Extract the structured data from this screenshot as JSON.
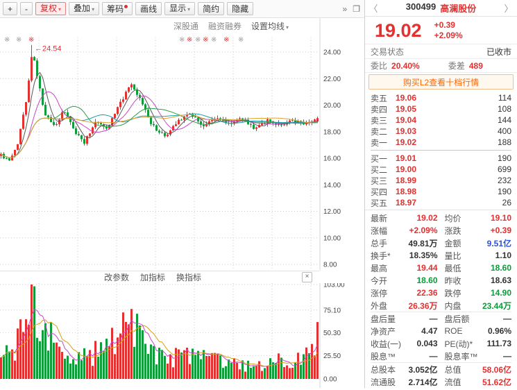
{
  "toolbar": {
    "buttons": [
      {
        "id": "zoom-in",
        "label": "+"
      },
      {
        "id": "zoom-out",
        "label": "-"
      },
      {
        "id": "adjust-price",
        "label": "复权",
        "arrow": true,
        "active": true
      },
      {
        "id": "overlay",
        "label": "叠加",
        "arrow": true
      },
      {
        "id": "chips",
        "label": "筹码",
        "dot": true
      },
      {
        "id": "draw-line",
        "label": "画线"
      },
      {
        "id": "display",
        "label": "显示",
        "arrow": true
      },
      {
        "id": "simple",
        "label": "简约"
      },
      {
        "id": "hide",
        "label": "隐藏"
      }
    ],
    "more": "»",
    "popout": "❐",
    "caret": "▾",
    "overlay_links": [
      "深股通",
      "融资融券"
    ],
    "ma_setting": "设置均线"
  },
  "indicator_bar": {
    "links": [
      "改参数",
      "加指标",
      "换指标"
    ],
    "close": "×"
  },
  "quote_panel": {
    "nav_prev": "〈",
    "nav_next": "〉",
    "code": "300499",
    "name": "高澜股份",
    "price": "19.02",
    "change": "+0.39",
    "change_pct": "+2.09%",
    "trade_status_label": "交易状态",
    "trade_status": "已收市",
    "weibi_label": "委比",
    "weibi": "20.40%",
    "weicha_label": "委差",
    "weicha": "489",
    "l2_link": "购买L2查看十档行情",
    "asks": [
      [
        "卖五",
        "19.06",
        "114"
      ],
      [
        "卖四",
        "19.05",
        "108"
      ],
      [
        "卖三",
        "19.04",
        "144"
      ],
      [
        "卖二",
        "19.03",
        "400"
      ],
      [
        "卖一",
        "19.02",
        "188"
      ]
    ],
    "bids": [
      [
        "买一",
        "19.01",
        "190"
      ],
      [
        "买二",
        "19.00",
        "699"
      ],
      [
        "买三",
        "18.99",
        "232"
      ],
      [
        "买四",
        "18.98",
        "190"
      ],
      [
        "买五",
        "18.97",
        "26"
      ]
    ],
    "stats": [
      [
        [
          "最新",
          "19.02",
          "red"
        ],
        [
          "均价",
          "19.10",
          "red"
        ]
      ],
      [
        [
          "涨幅",
          "+2.09%",
          "red"
        ],
        [
          "涨跌",
          "+0.39",
          "red"
        ]
      ],
      [
        [
          "总手",
          "49.81万",
          "dark"
        ],
        [
          "金额",
          "9.51亿",
          "blue"
        ]
      ],
      [
        [
          "换手*",
          "18.35%",
          "dark"
        ],
        [
          "量比",
          "1.10",
          "dark"
        ]
      ],
      [
        [
          "最高",
          "19.44",
          "red"
        ],
        [
          "最低",
          "18.60",
          "green"
        ]
      ],
      [
        [
          "今开",
          "18.60",
          "green"
        ],
        [
          "昨收",
          "18.63",
          "dark"
        ]
      ],
      [
        [
          "涨停",
          "22.36",
          "red"
        ],
        [
          "跌停",
          "14.90",
          "green"
        ]
      ],
      [
        [
          "外盘",
          "26.36万",
          "red"
        ],
        [
          "内盘",
          "23.44万",
          "green"
        ]
      ],
      [
        [
          "盘后量",
          "—",
          "dark"
        ],
        [
          "盘后额",
          "—",
          "dark"
        ]
      ],
      [
        [
          "净资产",
          "4.47",
          "dark"
        ],
        [
          "ROE",
          "0.96%",
          "dark"
        ]
      ],
      [
        [
          "收益(一)",
          "0.043",
          "dark"
        ],
        [
          "PE(动)*",
          "111.73",
          "dark"
        ]
      ],
      [
        [
          "股息™",
          "—",
          "dark"
        ],
        [
          "股息率™",
          "—",
          "dark"
        ]
      ],
      [
        [
          "总股本",
          "3.052亿",
          "dark"
        ],
        [
          "总值",
          "58.06亿",
          "red"
        ]
      ],
      [
        [
          "流通股",
          "2.714亿",
          "dark"
        ],
        [
          "流值",
          "51.62亿",
          "red"
        ]
      ]
    ]
  },
  "chart_data": {
    "type": "candlestick",
    "glyph_marker": "※",
    "last_close": 19.02,
    "spike_price": 24.54,
    "spike_label": "←24.54",
    "spike_volume": 103,
    "num_candles": 115,
    "seed": 42,
    "price_ticks": [
      [
        "24.00",
        24
      ],
      [
        "22.00",
        22
      ],
      [
        "20.00",
        20
      ],
      [
        "18.00",
        18
      ],
      [
        "16.00",
        16
      ],
      [
        "14.00",
        14
      ],
      [
        "12.00",
        12
      ],
      [
        "10.00",
        10
      ],
      [
        "8.00",
        8
      ]
    ],
    "volume_ticks": [
      [
        "103.00",
        103
      ],
      [
        "75.10",
        75.1
      ],
      [
        "50.30",
        50.3
      ],
      [
        "25.50",
        25.5
      ],
      [
        "0.00",
        0
      ]
    ],
    "price_anchors": [
      [
        0,
        16.3
      ],
      [
        0.025,
        15.7
      ],
      [
        0.05,
        16.8
      ],
      [
        0.08,
        20.5
      ],
      [
        0.1,
        24.2
      ],
      [
        0.115,
        22.0
      ],
      [
        0.14,
        19.2
      ],
      [
        0.17,
        18.4
      ],
      [
        0.2,
        19.6
      ],
      [
        0.23,
        18.1
      ],
      [
        0.265,
        17.2
      ],
      [
        0.3,
        18.9
      ],
      [
        0.335,
        18.2
      ],
      [
        0.37,
        19.9
      ],
      [
        0.41,
        21.5
      ],
      [
        0.44,
        20.4
      ],
      [
        0.48,
        18.4
      ],
      [
        0.52,
        17.6
      ],
      [
        0.56,
        18.9
      ],
      [
        0.6,
        19.4
      ],
      [
        0.64,
        18.4
      ],
      [
        0.68,
        19.1
      ],
      [
        0.72,
        18.6
      ],
      [
        0.76,
        19.0
      ],
      [
        0.8,
        18.3
      ],
      [
        0.84,
        18.8
      ],
      [
        0.88,
        18.55
      ],
      [
        0.92,
        18.75
      ],
      [
        0.96,
        18.65
      ],
      [
        1,
        19.0
      ]
    ],
    "vol_anchors": [
      [
        0,
        20
      ],
      [
        0.04,
        35
      ],
      [
        0.08,
        60
      ],
      [
        0.1,
        95
      ],
      [
        0.13,
        55
      ],
      [
        0.18,
        30
      ],
      [
        0.24,
        22
      ],
      [
        0.3,
        28
      ],
      [
        0.36,
        50
      ],
      [
        0.41,
        58
      ],
      [
        0.46,
        32
      ],
      [
        0.52,
        26
      ],
      [
        0.57,
        24
      ],
      [
        0.62,
        30
      ],
      [
        0.68,
        20
      ],
      [
        0.74,
        16
      ],
      [
        0.8,
        14
      ],
      [
        0.86,
        18
      ],
      [
        0.92,
        22
      ],
      [
        0.97,
        30
      ],
      [
        1,
        55
      ]
    ],
    "ma_periods": [
      5,
      10,
      20,
      30,
      60
    ],
    "markers": [
      {
        "f": 0.012,
        "c": "gray"
      },
      {
        "f": 0.05,
        "c": "gray"
      },
      {
        "f": 0.09,
        "c": "red"
      },
      {
        "f": 0.56,
        "c": "gray"
      },
      {
        "f": 0.585,
        "c": "red"
      },
      {
        "f": 0.61,
        "c": "gray"
      },
      {
        "f": 0.635,
        "c": "red"
      },
      {
        "f": 0.66,
        "c": "gray"
      },
      {
        "f": 0.7,
        "c": "red"
      },
      {
        "f": 0.745,
        "c": "gray"
      }
    ],
    "colors": {
      "up": "#e33030",
      "down": "#0f9d3a",
      "grid": "#cccccc",
      "axis_text": "#444444",
      "ma": [
        "#555555",
        "#c944c9",
        "#2a9d46",
        "#1b9fa8",
        "#e0a030"
      ],
      "vol_ma": [
        "#c944c9",
        "#d4a017"
      ]
    }
  }
}
